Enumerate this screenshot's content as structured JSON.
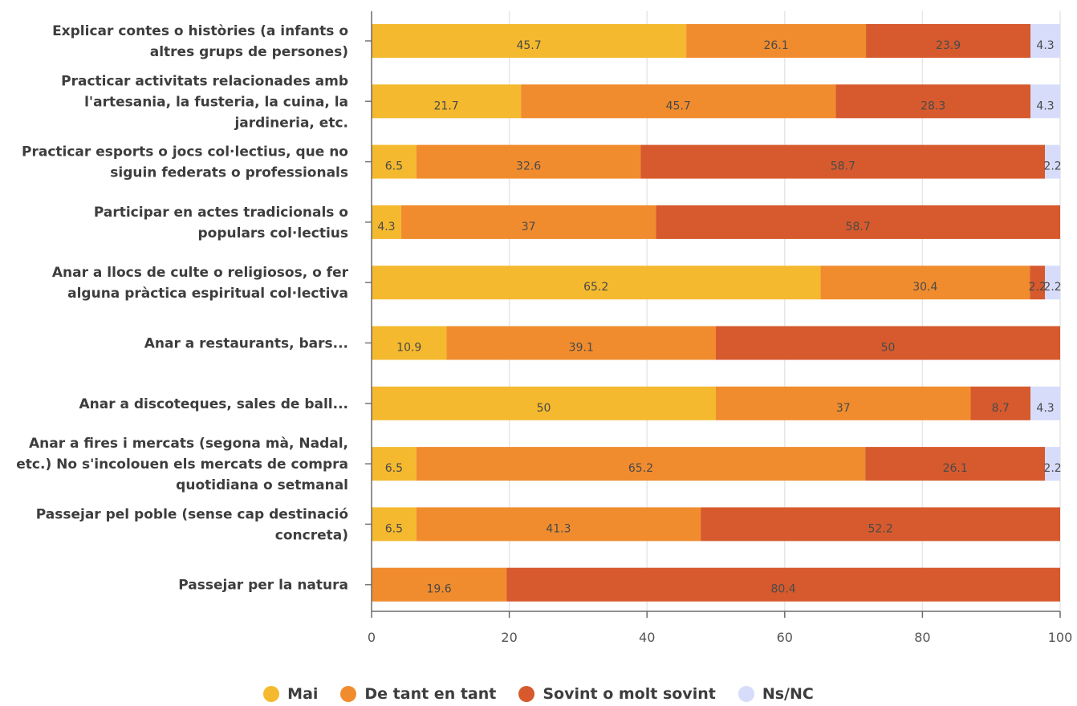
{
  "chart_data": {
    "type": "bar",
    "orientation": "horizontal",
    "stacked": true,
    "categories": [
      [
        "Explicar contes o històries (a infants o",
        "altres grups de persones)"
      ],
      [
        "Practicar activitats relacionades amb",
        "l'artesania, la fusteria, la cuina, la",
        "jardineria, etc."
      ],
      [
        "Practicar esports o jocs col·lectius, que no",
        "siguin federats o professionals"
      ],
      [
        "Participar en actes tradicionals o",
        "populars col·lectius"
      ],
      [
        "Anar a llocs de culte o religiosos, o fer",
        "alguna pràctica espiritual col·lectiva"
      ],
      [
        "Anar a restaurants, bars..."
      ],
      [
        "Anar a discoteques, sales de ball..."
      ],
      [
        "Anar a fires i mercats (segona mà, Nadal,",
        "etc.) No s'incolouen els mercats de compra",
        "quotidiana o setmanal"
      ],
      [
        "Passejar pel poble (sense cap destinació",
        "concreta)"
      ],
      [
        "Passejar per la natura"
      ]
    ],
    "series": [
      {
        "name": "Mai",
        "color": "#f4b92e",
        "values": [
          45.7,
          21.7,
          6.5,
          4.3,
          65.2,
          10.9,
          50,
          6.5,
          6.5,
          0
        ]
      },
      {
        "name": "De tant en tant",
        "color": "#f08c2e",
        "values": [
          26.1,
          45.7,
          32.6,
          37,
          30.4,
          39.1,
          37,
          65.2,
          41.3,
          19.6
        ]
      },
      {
        "name": "Sovint o molt sovint",
        "color": "#d65a2d",
        "values": [
          23.9,
          28.3,
          58.7,
          58.7,
          2.2,
          50,
          8.7,
          26.1,
          52.2,
          80.4
        ]
      },
      {
        "name": "Ns/NC",
        "color": "#d7dcfa",
        "values": [
          4.3,
          4.3,
          2.2,
          0,
          2.2,
          0,
          4.3,
          2.2,
          0,
          0
        ]
      }
    ],
    "value_labels": [
      [
        "45.7",
        "26.1",
        "23.9",
        "4.3"
      ],
      [
        "21.7",
        "45.7",
        "28.3",
        "4.3"
      ],
      [
        "6.5",
        "32.6",
        "58.7",
        "2.2"
      ],
      [
        "4.3",
        "37",
        "58.7",
        ""
      ],
      [
        "65.2",
        "30.4",
        "2.2",
        "2.2"
      ],
      [
        "10.9",
        "39.1",
        "50",
        ""
      ],
      [
        "50",
        "37",
        "8.7",
        "4.3"
      ],
      [
        "6.5",
        "65.2",
        "26.1",
        "2.2"
      ],
      [
        "6.5",
        "41.3",
        "52.2",
        ""
      ],
      [
        "",
        "19.6",
        "80.4",
        ""
      ]
    ],
    "x_ticks": [
      "0",
      "20",
      "40",
      "60",
      "80",
      "100"
    ],
    "xlim": [
      0,
      100
    ],
    "grid": true,
    "legend_position": "bottom"
  }
}
